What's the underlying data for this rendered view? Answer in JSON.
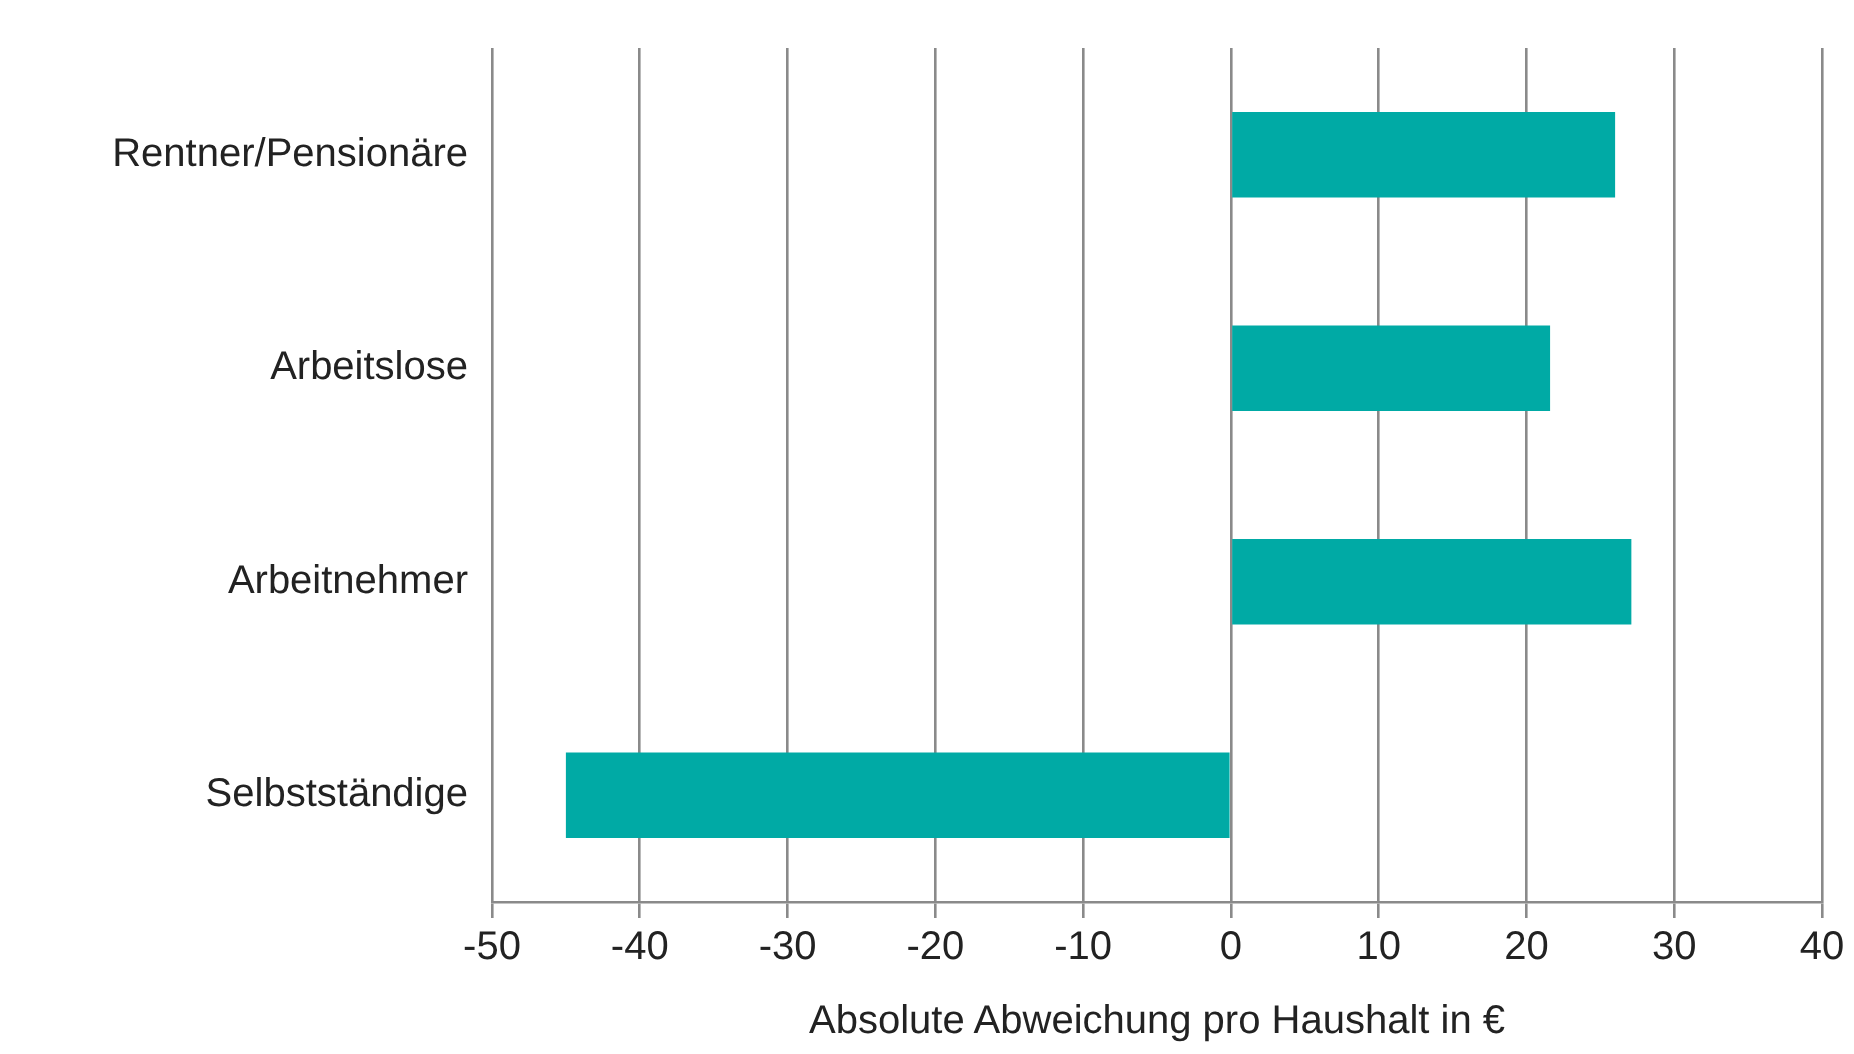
{
  "chart_data": {
    "type": "bar",
    "orientation": "horizontal",
    "xlabel": "Absolute Abweichung pro Haushalt in €",
    "categories": [
      "Rentner/Pensionäre",
      "Arbeitslose",
      "Arbeitnehmer",
      "Selbstständige"
    ],
    "values": [
      26,
      21.6,
      27.1,
      -45
    ],
    "color": "#00aaa5",
    "xlim": [
      -50,
      40
    ],
    "xticks": [
      -50,
      -40,
      -30,
      -20,
      -10,
      0,
      10,
      20,
      30,
      40
    ],
    "grid": "x"
  }
}
